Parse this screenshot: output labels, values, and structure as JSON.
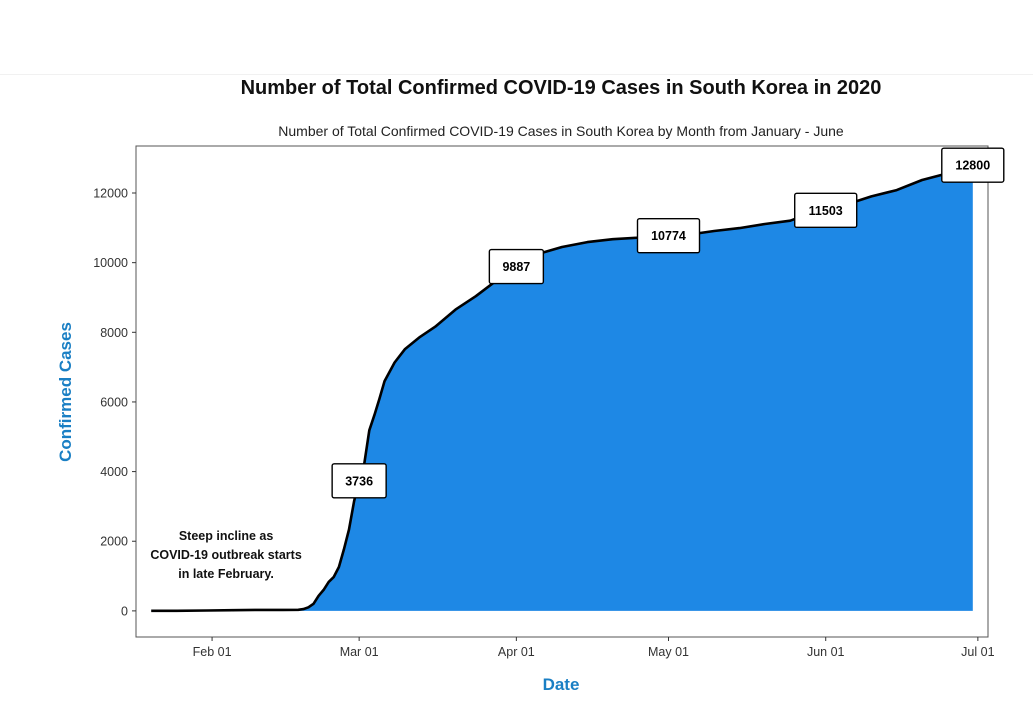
{
  "colors": {
    "area_fill": "#1e88e5",
    "line": "#000000",
    "axis_title": "#1a7fc4",
    "panel_border": "#555555"
  },
  "chart_data": {
    "type": "area",
    "title": "Number of Total Confirmed COVID-19 Cases in South Korea in 2020",
    "subtitle": "Number of Total Confirmed COVID-19 Cases in South Korea by Month from January - June",
    "xlabel": "Date",
    "ylabel": "Confirmed Cases",
    "xlim": [
      "2020-01-17",
      "2020-07-03"
    ],
    "ylim": [
      -750,
      13350
    ],
    "x_ticks": [
      "2020-02-01",
      "2020-03-01",
      "2020-04-01",
      "2020-05-01",
      "2020-06-01",
      "2020-07-01"
    ],
    "x_tick_labels": [
      "Feb 01",
      "Mar 01",
      "Apr 01",
      "May 01",
      "Jun 01",
      "Jul 01"
    ],
    "y_ticks": [
      0,
      2000,
      4000,
      6000,
      8000,
      10000,
      12000
    ],
    "y_tick_labels": [
      "0",
      "2000",
      "4000",
      "6000",
      "8000",
      "10000",
      "12000"
    ],
    "grid": false,
    "series": [
      {
        "x": [
          "2020-01-20",
          "2020-01-25",
          "2020-01-31",
          "2020-02-05",
          "2020-02-10",
          "2020-02-15",
          "2020-02-18",
          "2020-02-19",
          "2020-02-20",
          "2020-02-21",
          "2020-02-22",
          "2020-02-23",
          "2020-02-24",
          "2020-02-25",
          "2020-02-26",
          "2020-02-27",
          "2020-02-28",
          "2020-02-29",
          "2020-03-01",
          "2020-03-02",
          "2020-03-03",
          "2020-03-04",
          "2020-03-05",
          "2020-03-06",
          "2020-03-08",
          "2020-03-10",
          "2020-03-13",
          "2020-03-16",
          "2020-03-20",
          "2020-03-24",
          "2020-03-28",
          "2020-03-30",
          "2020-04-01",
          "2020-04-05",
          "2020-04-10",
          "2020-04-15",
          "2020-04-20",
          "2020-04-25",
          "2020-04-30",
          "2020-05-05",
          "2020-05-10",
          "2020-05-15",
          "2020-05-20",
          "2020-05-25",
          "2020-05-30",
          "2020-06-01",
          "2020-06-05",
          "2020-06-10",
          "2020-06-15",
          "2020-06-20",
          "2020-06-25",
          "2020-06-30"
        ],
        "values": [
          1,
          3,
          11,
          19,
          27,
          28,
          31,
          51,
          104,
          204,
          433,
          602,
          833,
          977,
          1261,
          1766,
          2337,
          3150,
          3736,
          4212,
          5186,
          5621,
          6088,
          6593,
          7134,
          7513,
          7869,
          8162,
          8652,
          9037,
          9478,
          9661,
          9887,
          10237,
          10450,
          10591,
          10674,
          10718,
          10774,
          10806,
          10909,
          10991,
          11110,
          11206,
          11468,
          11503,
          11668,
          11902,
          12085,
          12373,
          12563,
          12800
        ]
      }
    ],
    "data_labels": [
      {
        "date": "2020-03-01",
        "value": 3736,
        "text": "3736"
      },
      {
        "date": "2020-04-01",
        "value": 9887,
        "text": "9887"
      },
      {
        "date": "2020-05-01",
        "value": 10774,
        "text": "10774"
      },
      {
        "date": "2020-06-01",
        "value": 11503,
        "text": "11503"
      },
      {
        "date": "2020-06-30",
        "value": 12800,
        "text": "12800"
      }
    ],
    "annotation": {
      "date": "2020-02-01",
      "value": 1600,
      "lines": [
        "Steep incline as",
        "COVID-19 outbreak starts",
        "in late February."
      ]
    }
  }
}
